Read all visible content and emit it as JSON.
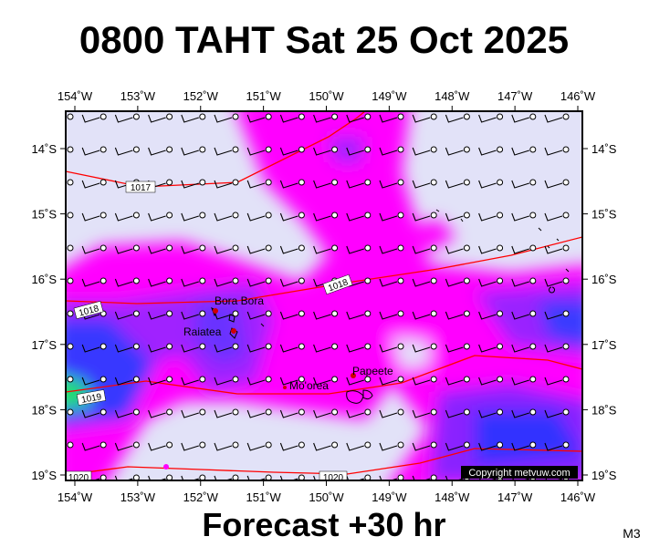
{
  "header": {
    "title": "0800 TAHT Sat 25 Oct 2025"
  },
  "footer": {
    "subtitle": "Forecast +30 hr",
    "model": "M3"
  },
  "map": {
    "lon_ticks": [
      {
        "value": -154,
        "label": "154˚W"
      },
      {
        "value": -153,
        "label": "153˚W"
      },
      {
        "value": -152,
        "label": "152˚W"
      },
      {
        "value": -151,
        "label": "151˚W"
      },
      {
        "value": -150,
        "label": "150˚W"
      },
      {
        "value": -149,
        "label": "149˚W"
      },
      {
        "value": -148,
        "label": "148˚W"
      },
      {
        "value": -147,
        "label": "147˚W"
      },
      {
        "value": -146,
        "label": "146˚W"
      }
    ],
    "lat_ticks": [
      {
        "value": -14,
        "label": "14˚S"
      },
      {
        "value": -15,
        "label": "15˚S"
      },
      {
        "value": -16,
        "label": "16˚S"
      },
      {
        "value": -17,
        "label": "17˚S"
      },
      {
        "value": -18,
        "label": "18˚S"
      },
      {
        "value": -19,
        "label": "19˚S"
      }
    ],
    "places": [
      "Bora Bora",
      "Raiatea",
      "Mo'orea",
      "Papeete"
    ],
    "isobar_labels": [
      "1017",
      "1018",
      "1018",
      "1019",
      "1020",
      "1020"
    ],
    "copyright": "Copyright metvuw.com"
  }
}
